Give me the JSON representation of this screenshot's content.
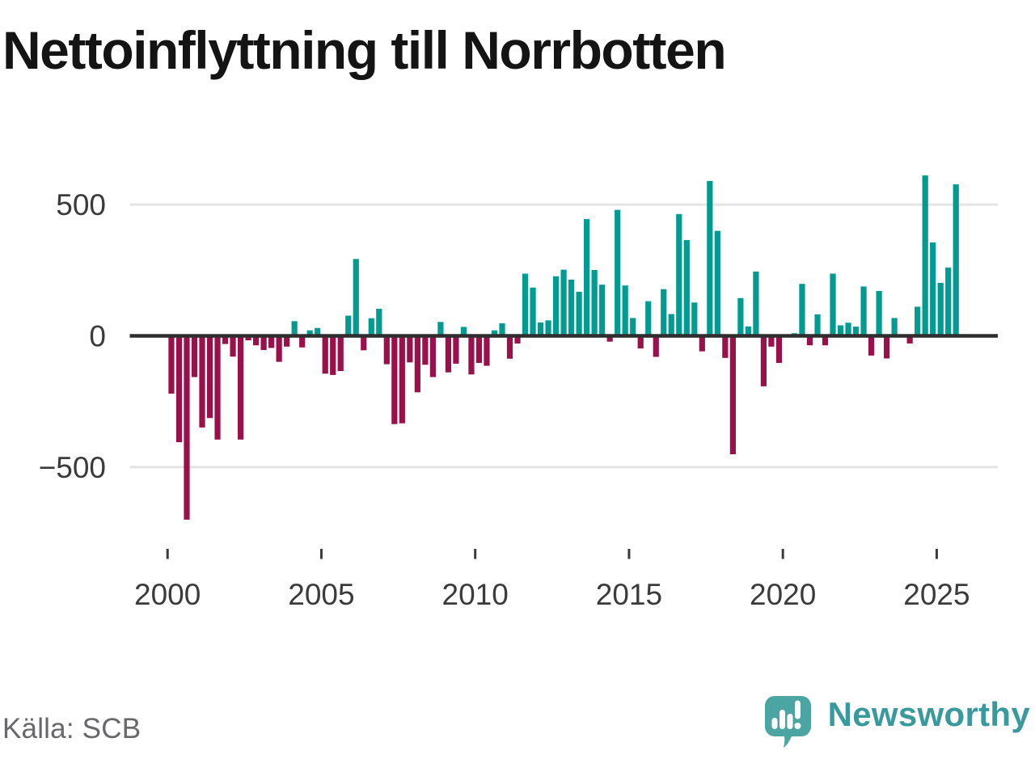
{
  "title": "Nettoinflyttning till Norrbotten",
  "source": "Källa: SCB",
  "branding": {
    "name": "Newsworthy",
    "icon": "newsworthy-speech-bubble-bar-chart-icon"
  },
  "colors": {
    "positive_bar": "#019b91",
    "negative_bar": "#99104a",
    "zero_line": "#2e2e2e",
    "gridline": "#e4e4e4",
    "axis_text": "#3b3b3b",
    "title_text": "#141414",
    "source_text": "#67676c",
    "brand_text": "#399a9d",
    "brand_icon": "#4ba5a3",
    "background": "#ffffff"
  },
  "chart_data": {
    "type": "bar",
    "title": "Nettoinflyttning till Norrbotten",
    "xlabel": "",
    "ylabel": "",
    "frequency": "quarterly",
    "x_tick_years": [
      2000,
      2005,
      2010,
      2015,
      2020,
      2025
    ],
    "x_tick_labels": [
      "2000",
      "2005",
      "2010",
      "2015",
      "2020",
      "2025"
    ],
    "y_ticks": [
      500,
      0,
      -500
    ],
    "y_tick_labels": [
      "500",
      "0",
      "−500"
    ],
    "ylim": [
      -745,
      650
    ],
    "grid": "horizontal gridlines at 500 and -500, emphasized dark line at 0",
    "legend": "none",
    "periods": [
      "2000Q1",
      "2000Q2",
      "2000Q3",
      "2000Q4",
      "2001Q1",
      "2001Q2",
      "2001Q3",
      "2001Q4",
      "2002Q1",
      "2002Q2",
      "2002Q3",
      "2002Q4",
      "2003Q1",
      "2003Q2",
      "2003Q3",
      "2003Q4",
      "2004Q1",
      "2004Q2",
      "2004Q3",
      "2004Q4",
      "2005Q1",
      "2005Q2",
      "2005Q3",
      "2005Q4",
      "2006Q1",
      "2006Q2",
      "2006Q3",
      "2006Q4",
      "2007Q1",
      "2007Q2",
      "2007Q3",
      "2007Q4",
      "2008Q1",
      "2008Q2",
      "2008Q3",
      "2008Q4",
      "2009Q1",
      "2009Q2",
      "2009Q3",
      "2009Q4",
      "2010Q1",
      "2010Q2",
      "2010Q3",
      "2010Q4",
      "2011Q1",
      "2011Q2",
      "2011Q3",
      "2011Q4",
      "2012Q1",
      "2012Q2",
      "2012Q3",
      "2012Q4",
      "2013Q1",
      "2013Q2",
      "2013Q3",
      "2013Q4",
      "2014Q1",
      "2014Q2",
      "2014Q3",
      "2014Q4",
      "2015Q1",
      "2015Q2",
      "2015Q3",
      "2015Q4",
      "2016Q1",
      "2016Q2",
      "2016Q3",
      "2016Q4",
      "2017Q1",
      "2017Q2",
      "2017Q3",
      "2017Q4",
      "2018Q1",
      "2018Q2",
      "2018Q3",
      "2018Q4",
      "2019Q1",
      "2019Q2",
      "2019Q3",
      "2019Q4",
      "2020Q1",
      "2020Q2",
      "2020Q3",
      "2020Q4",
      "2021Q1",
      "2021Q2",
      "2021Q3",
      "2021Q4",
      "2022Q1",
      "2022Q2",
      "2022Q3",
      "2022Q4",
      "2023Q1",
      "2023Q2",
      "2023Q3",
      "2023Q4",
      "2024Q1",
      "2024Q2",
      "2024Q3",
      "2024Q4",
      "2025Q1",
      "2025Q2",
      "2025Q3"
    ],
    "values": [
      -220,
      -405,
      -700,
      -157,
      -349,
      -313,
      -395,
      -31,
      -79,
      -395,
      -17,
      -36,
      -54,
      -46,
      -99,
      -41,
      56,
      -44,
      21,
      30,
      -144,
      -149,
      -134,
      77,
      293,
      -55,
      67,
      103,
      -108,
      -336,
      -333,
      -101,
      -215,
      -110,
      -157,
      53,
      -139,
      -106,
      34,
      -147,
      -103,
      -114,
      21,
      48,
      -87,
      -29,
      237,
      184,
      51,
      59,
      227,
      252,
      214,
      168,
      445,
      251,
      195,
      -22,
      480,
      192,
      68,
      -48,
      132,
      -80,
      178,
      83,
      464,
      365,
      127,
      -59,
      590,
      400,
      -84,
      -451,
      144,
      36,
      245,
      -192,
      -41,
      -103,
      0,
      10,
      198,
      -36,
      82,
      -36,
      237,
      40,
      50,
      35,
      188,
      -75,
      171,
      -86,
      68,
      0,
      -29,
      111,
      611,
      356,
      202,
      260,
      577
    ]
  }
}
